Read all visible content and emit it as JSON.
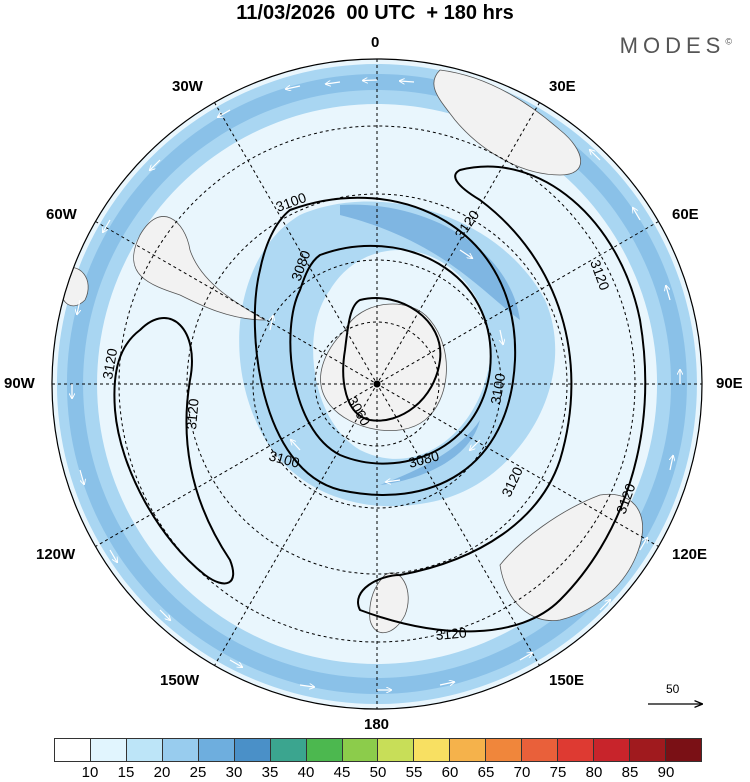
{
  "header": {
    "title": "11/03/2026  00 UTC  + 180 hrs",
    "brand": "MODES",
    "brand_mark": "©"
  },
  "map": {
    "projection": "south polar stereographic",
    "longitude_labels": {
      "top": "0",
      "upper_right": "30E",
      "right_upper": "60E",
      "right": "90E",
      "right_lower": "120E",
      "lower_right": "150E",
      "bottom": "180",
      "lower_left": "150W",
      "left_lower": "120W",
      "left": "90W",
      "left_upper": "60W",
      "upper_left": "30W"
    },
    "contour_labels": [
      "3100",
      "3080",
      "3120",
      "3120",
      "3120",
      "3120",
      "3060",
      "3100",
      "3080",
      "3120",
      "3120",
      "3100",
      "3120"
    ],
    "reference_vector": {
      "label": "50"
    }
  },
  "colorbar": {
    "ticks": [
      "10",
      "15",
      "20",
      "25",
      "30",
      "35",
      "40",
      "45",
      "50",
      "55",
      "60",
      "65",
      "70",
      "75",
      "80",
      "85",
      "90"
    ],
    "colors": [
      "#ffffff",
      "#e1f5fe",
      "#bde5f8",
      "#98ccee",
      "#6eaede",
      "#4a90c8",
      "#3ba58f",
      "#4cb84f",
      "#8ccc4b",
      "#c8de58",
      "#f8e062",
      "#f5b24b",
      "#f0863b",
      "#e9603a",
      "#de3a32",
      "#c8242b",
      "#a01a1e"
    ]
  }
}
